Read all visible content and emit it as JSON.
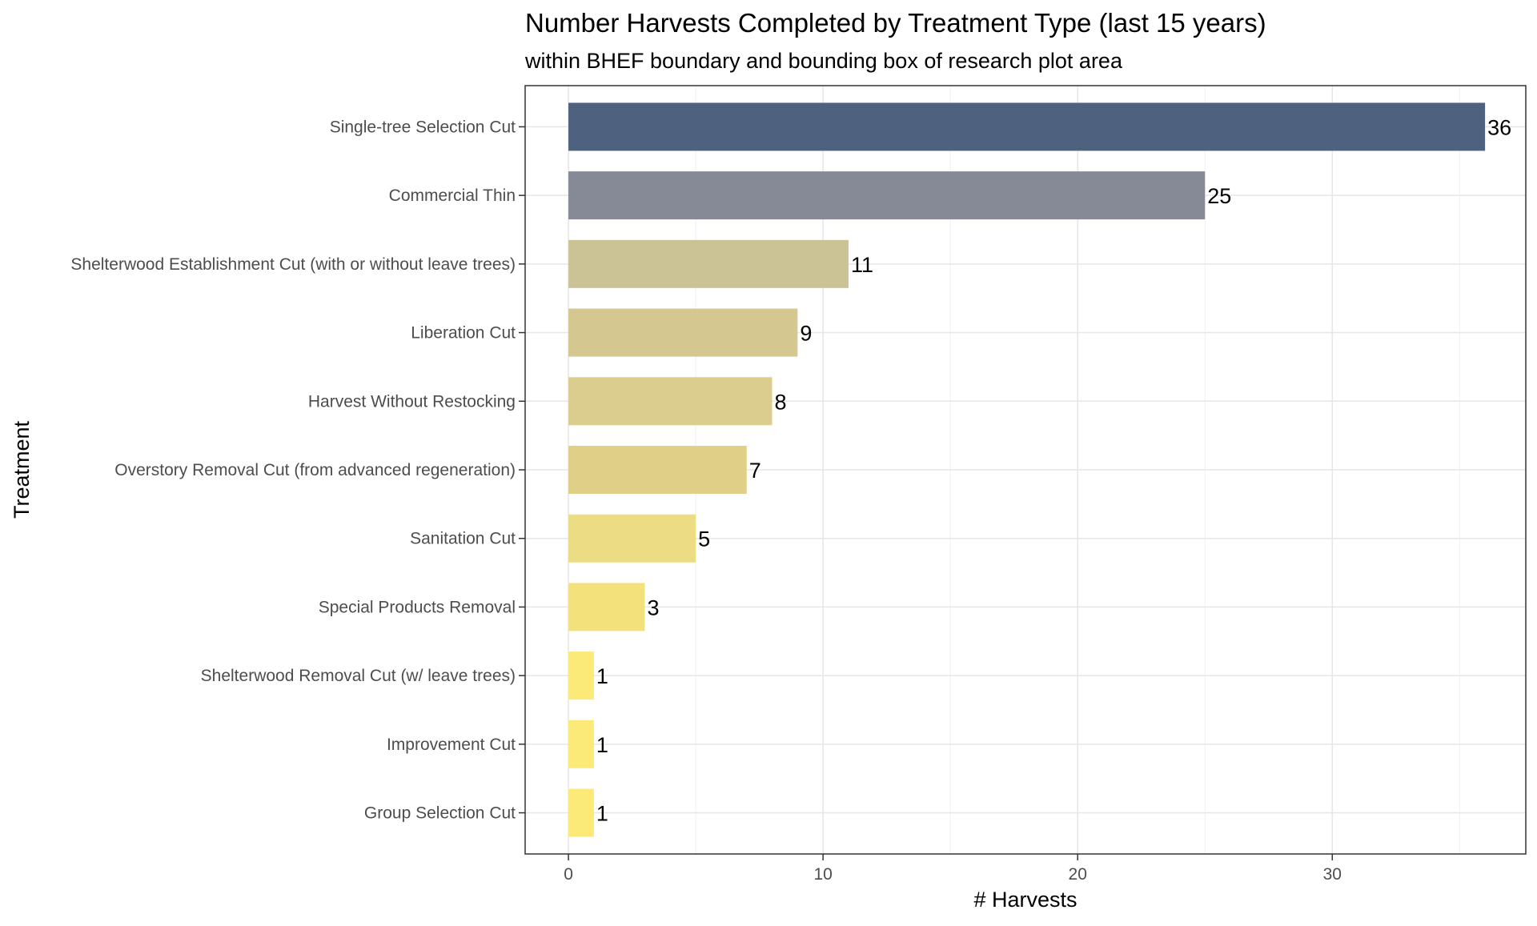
{
  "chart_data": {
    "type": "bar",
    "orientation": "horizontal",
    "title": "Number Harvests Completed by Treatment Type (last 15 years)",
    "subtitle": "within BHEF boundary and bounding box of research plot area",
    "xlabel": "# Harvests",
    "ylabel": "Treatment",
    "xlim": [
      -1.7,
      37.6
    ],
    "x_ticks": [
      0,
      10,
      20,
      30
    ],
    "grid": true,
    "legend": "none",
    "categories": [
      "Single-tree Selection Cut",
      "Commercial Thin",
      "Shelterwood Establishment Cut (with or without leave trees)",
      "Liberation Cut",
      "Harvest Without Restocking",
      "Overstory Removal Cut (from advanced regeneration)",
      "Sanitation Cut",
      "Special Products Removal",
      "Shelterwood Removal Cut (w/ leave trees)",
      "Improvement Cut",
      "Group Selection Cut"
    ],
    "values": [
      36,
      25,
      11,
      9,
      8,
      7,
      5,
      3,
      1,
      1,
      1
    ],
    "value_labels": [
      "36",
      "25",
      "11",
      "9",
      "8",
      "7",
      "5",
      "3",
      "1",
      "1",
      "1"
    ],
    "bar_colors": [
      "#4e617f",
      "#858a96",
      "#cbc395",
      "#d4c78f",
      "#dbcd8d",
      "#e0cf86",
      "#ecdc84",
      "#f3e27c",
      "#fbea78",
      "#fbea78",
      "#fbea78"
    ]
  }
}
